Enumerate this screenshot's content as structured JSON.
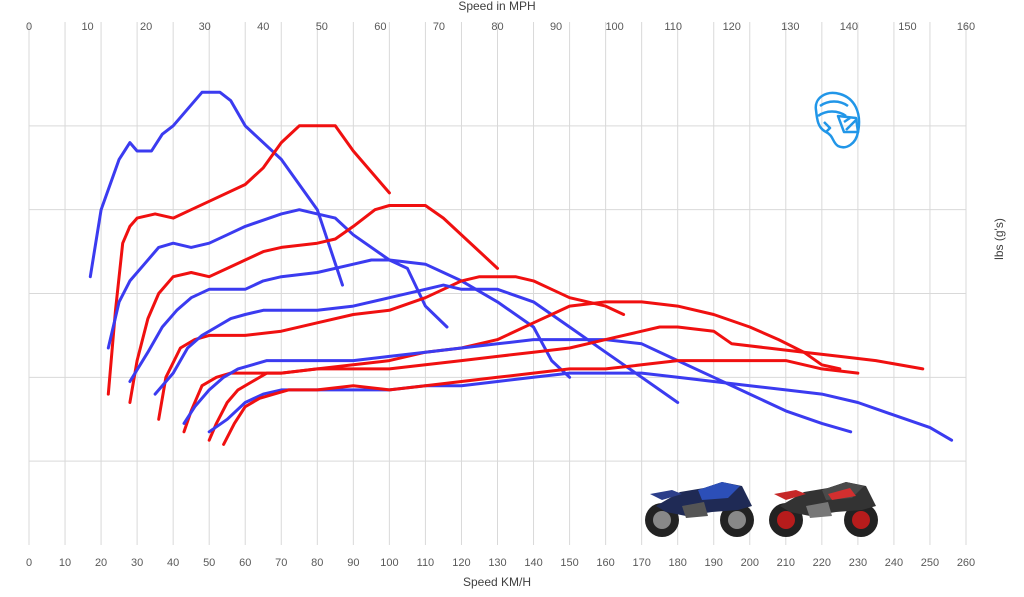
{
  "chart_data": {
    "type": "line",
    "x_axis_bottom": {
      "label": "Speed KM/H",
      "min": 0,
      "max": 260,
      "step": 10
    },
    "x_axis_top": {
      "label": "Speed in MPH",
      "min": 0,
      "max": 160,
      "step": 10
    },
    "y_axis": {
      "label": "lbs (g's)",
      "ticks_labeled": false,
      "min": 0,
      "max": 6,
      "grid_lines": [
        1,
        2,
        3,
        4,
        5
      ]
    },
    "grid": true,
    "colors": {
      "series_a": "#3b3bf0",
      "series_b": "#f01010",
      "grid": "#d9d9d9",
      "helmet": "#2196e8"
    },
    "icons": [
      "helmet-icon",
      "blue-motorcycle",
      "red-motorcycle"
    ],
    "series": [
      {
        "color": "blue",
        "points": [
          [
            17,
            3.2
          ],
          [
            20,
            4.0
          ],
          [
            25,
            4.6
          ],
          [
            28,
            4.8
          ],
          [
            30,
            4.7
          ],
          [
            34,
            4.7
          ],
          [
            37,
            4.9
          ],
          [
            40,
            5.0
          ],
          [
            46,
            5.3
          ],
          [
            48,
            5.4
          ],
          [
            53,
            5.4
          ],
          [
            56,
            5.3
          ],
          [
            60,
            5.0
          ],
          [
            70,
            4.6
          ],
          [
            80,
            4.0
          ],
          [
            87,
            3.1
          ]
        ]
      },
      {
        "color": "red",
        "points": [
          [
            22,
            1.8
          ],
          [
            24,
            2.8
          ],
          [
            26,
            3.6
          ],
          [
            28,
            3.8
          ],
          [
            30,
            3.9
          ],
          [
            35,
            3.95
          ],
          [
            40,
            3.9
          ],
          [
            45,
            4.0
          ],
          [
            50,
            4.1
          ],
          [
            60,
            4.3
          ],
          [
            65,
            4.5
          ],
          [
            70,
            4.8
          ],
          [
            75,
            5.0
          ],
          [
            80,
            5.0
          ],
          [
            85,
            5.0
          ],
          [
            90,
            4.7
          ],
          [
            100,
            4.2
          ]
        ]
      },
      {
        "color": "blue",
        "points": [
          [
            22,
            2.35
          ],
          [
            25,
            2.9
          ],
          [
            28,
            3.15
          ],
          [
            32,
            3.35
          ],
          [
            36,
            3.55
          ],
          [
            40,
            3.6
          ],
          [
            45,
            3.55
          ],
          [
            50,
            3.6
          ],
          [
            55,
            3.7
          ],
          [
            60,
            3.8
          ],
          [
            70,
            3.95
          ],
          [
            75,
            4.0
          ],
          [
            80,
            3.95
          ],
          [
            85,
            3.9
          ],
          [
            90,
            3.7
          ],
          [
            100,
            3.4
          ],
          [
            105,
            3.3
          ],
          [
            110,
            2.85
          ],
          [
            116,
            2.6
          ]
        ]
      },
      {
        "color": "red",
        "points": [
          [
            28,
            1.7
          ],
          [
            30,
            2.2
          ],
          [
            33,
            2.7
          ],
          [
            36,
            3.0
          ],
          [
            40,
            3.2
          ],
          [
            45,
            3.25
          ],
          [
            50,
            3.2
          ],
          [
            55,
            3.3
          ],
          [
            60,
            3.4
          ],
          [
            65,
            3.5
          ],
          [
            70,
            3.55
          ],
          [
            80,
            3.6
          ],
          [
            85,
            3.65
          ],
          [
            90,
            3.8
          ],
          [
            96,
            4.0
          ],
          [
            100,
            4.05
          ],
          [
            110,
            4.05
          ],
          [
            115,
            3.9
          ],
          [
            125,
            3.5
          ],
          [
            130,
            3.3
          ]
        ]
      },
      {
        "color": "blue",
        "points": [
          [
            28,
            1.95
          ],
          [
            33,
            2.3
          ],
          [
            37,
            2.6
          ],
          [
            41,
            2.8
          ],
          [
            45,
            2.95
          ],
          [
            50,
            3.05
          ],
          [
            55,
            3.05
          ],
          [
            60,
            3.05
          ],
          [
            65,
            3.15
          ],
          [
            70,
            3.2
          ],
          [
            80,
            3.25
          ],
          [
            90,
            3.35
          ],
          [
            95,
            3.4
          ],
          [
            100,
            3.4
          ],
          [
            110,
            3.35
          ],
          [
            115,
            3.25
          ],
          [
            120,
            3.15
          ],
          [
            130,
            2.9
          ],
          [
            140,
            2.6
          ],
          [
            145,
            2.2
          ],
          [
            150,
            2.0
          ]
        ]
      },
      {
        "color": "red",
        "points": [
          [
            36,
            1.5
          ],
          [
            38,
            2.0
          ],
          [
            42,
            2.35
          ],
          [
            46,
            2.45
          ],
          [
            50,
            2.5
          ],
          [
            55,
            2.5
          ],
          [
            60,
            2.5
          ],
          [
            70,
            2.55
          ],
          [
            80,
            2.65
          ],
          [
            90,
            2.75
          ],
          [
            100,
            2.8
          ],
          [
            110,
            2.95
          ],
          [
            115,
            3.05
          ],
          [
            120,
            3.15
          ],
          [
            125,
            3.2
          ],
          [
            130,
            3.2
          ],
          [
            135,
            3.2
          ],
          [
            140,
            3.15
          ],
          [
            145,
            3.05
          ],
          [
            150,
            2.95
          ],
          [
            160,
            2.85
          ],
          [
            165,
            2.75
          ]
        ]
      },
      {
        "color": "blue",
        "points": [
          [
            35,
            1.8
          ],
          [
            40,
            2.05
          ],
          [
            44,
            2.35
          ],
          [
            48,
            2.5
          ],
          [
            52,
            2.6
          ],
          [
            56,
            2.7
          ],
          [
            60,
            2.75
          ],
          [
            65,
            2.8
          ],
          [
            70,
            2.8
          ],
          [
            80,
            2.8
          ],
          [
            90,
            2.85
          ],
          [
            100,
            2.95
          ],
          [
            110,
            3.05
          ],
          [
            115,
            3.1
          ],
          [
            120,
            3.05
          ],
          [
            130,
            3.05
          ],
          [
            140,
            2.9
          ],
          [
            150,
            2.6
          ],
          [
            160,
            2.3
          ],
          [
            170,
            2.0
          ],
          [
            180,
            1.7
          ]
        ]
      },
      {
        "color": "red",
        "points": [
          [
            43,
            1.35
          ],
          [
            45,
            1.6
          ],
          [
            48,
            1.9
          ],
          [
            52,
            2.0
          ],
          [
            56,
            2.05
          ],
          [
            60,
            2.05
          ],
          [
            70,
            2.05
          ],
          [
            80,
            2.1
          ],
          [
            90,
            2.15
          ],
          [
            100,
            2.2
          ],
          [
            110,
            2.3
          ],
          [
            120,
            2.35
          ],
          [
            130,
            2.45
          ],
          [
            140,
            2.65
          ],
          [
            145,
            2.75
          ],
          [
            150,
            2.85
          ],
          [
            160,
            2.9
          ],
          [
            170,
            2.9
          ],
          [
            180,
            2.85
          ],
          [
            190,
            2.75
          ],
          [
            200,
            2.6
          ],
          [
            208,
            2.45
          ],
          [
            215,
            2.3
          ],
          [
            220,
            2.15
          ],
          [
            225,
            2.1
          ]
        ]
      },
      {
        "color": "blue",
        "points": [
          [
            43,
            1.45
          ],
          [
            46,
            1.65
          ],
          [
            50,
            1.85
          ],
          [
            54,
            2.0
          ],
          [
            58,
            2.1
          ],
          [
            62,
            2.15
          ],
          [
            66,
            2.2
          ],
          [
            70,
            2.2
          ],
          [
            80,
            2.2
          ],
          [
            90,
            2.2
          ],
          [
            100,
            2.25
          ],
          [
            110,
            2.3
          ],
          [
            120,
            2.35
          ],
          [
            130,
            2.4
          ],
          [
            140,
            2.45
          ],
          [
            150,
            2.45
          ],
          [
            160,
            2.45
          ],
          [
            170,
            2.4
          ],
          [
            180,
            2.2
          ],
          [
            190,
            2.0
          ],
          [
            200,
            1.8
          ],
          [
            210,
            1.6
          ],
          [
            220,
            1.45
          ],
          [
            228,
            1.35
          ]
        ]
      },
      {
        "color": "red",
        "points": [
          [
            50,
            1.25
          ],
          [
            52,
            1.45
          ],
          [
            55,
            1.7
          ],
          [
            58,
            1.85
          ],
          [
            62,
            1.95
          ],
          [
            66,
            2.05
          ],
          [
            70,
            2.05
          ],
          [
            80,
            2.1
          ],
          [
            90,
            2.1
          ],
          [
            100,
            2.1
          ],
          [
            110,
            2.15
          ],
          [
            120,
            2.2
          ],
          [
            130,
            2.25
          ],
          [
            140,
            2.3
          ],
          [
            150,
            2.35
          ],
          [
            160,
            2.45
          ],
          [
            170,
            2.55
          ],
          [
            175,
            2.6
          ],
          [
            180,
            2.6
          ],
          [
            190,
            2.55
          ],
          [
            195,
            2.4
          ],
          [
            205,
            2.35
          ],
          [
            215,
            2.3
          ],
          [
            225,
            2.25
          ],
          [
            235,
            2.2
          ],
          [
            248,
            2.1
          ]
        ]
      },
      {
        "color": "blue",
        "points": [
          [
            50,
            1.35
          ],
          [
            55,
            1.5
          ],
          [
            60,
            1.7
          ],
          [
            65,
            1.8
          ],
          [
            70,
            1.85
          ],
          [
            80,
            1.85
          ],
          [
            90,
            1.85
          ],
          [
            100,
            1.85
          ],
          [
            110,
            1.9
          ],
          [
            120,
            1.9
          ],
          [
            130,
            1.95
          ],
          [
            140,
            2.0
          ],
          [
            150,
            2.05
          ],
          [
            160,
            2.05
          ],
          [
            170,
            2.05
          ],
          [
            180,
            2.0
          ],
          [
            190,
            1.95
          ],
          [
            200,
            1.9
          ],
          [
            210,
            1.85
          ],
          [
            220,
            1.8
          ],
          [
            230,
            1.7
          ],
          [
            240,
            1.55
          ],
          [
            250,
            1.4
          ],
          [
            256,
            1.25
          ]
        ]
      },
      {
        "color": "red",
        "points": [
          [
            54,
            1.2
          ],
          [
            57,
            1.45
          ],
          [
            60,
            1.65
          ],
          [
            64,
            1.75
          ],
          [
            68,
            1.8
          ],
          [
            72,
            1.85
          ],
          [
            80,
            1.85
          ],
          [
            90,
            1.9
          ],
          [
            100,
            1.85
          ],
          [
            110,
            1.9
          ],
          [
            120,
            1.95
          ],
          [
            130,
            2.0
          ],
          [
            140,
            2.05
          ],
          [
            150,
            2.1
          ],
          [
            160,
            2.1
          ],
          [
            170,
            2.15
          ],
          [
            180,
            2.2
          ],
          [
            190,
            2.2
          ],
          [
            200,
            2.2
          ],
          [
            210,
            2.2
          ],
          [
            220,
            2.1
          ],
          [
            230,
            2.05
          ]
        ]
      }
    ]
  }
}
